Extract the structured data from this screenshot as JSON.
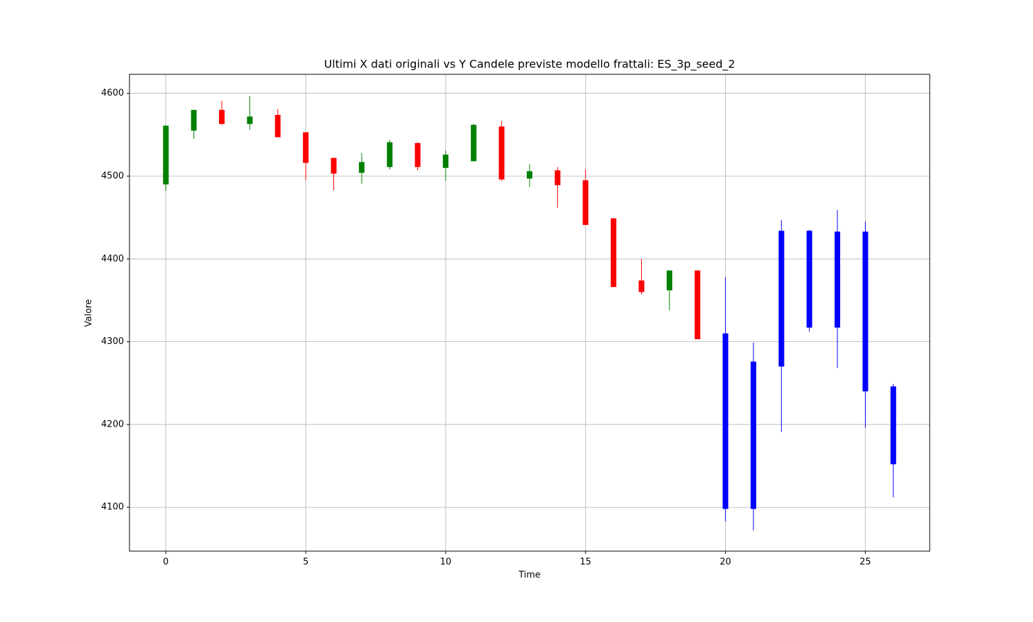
{
  "chart_data": {
    "type": "candlestick",
    "title": "Ultimi X dati originali vs Y Candele previste modello frattali: ES_3p_seed_2",
    "xlabel": "Time",
    "ylabel": "Valore",
    "x": [
      0,
      1,
      2,
      3,
      4,
      5,
      6,
      7,
      8,
      9,
      10,
      11,
      12,
      13,
      14,
      15,
      16,
      17,
      18,
      19,
      20,
      21,
      22,
      23,
      24,
      25,
      26
    ],
    "open": [
      4490,
      4555,
      4580,
      4563,
      4574,
      4553,
      4522,
      4504,
      4511,
      4540,
      4510,
      4518,
      4560,
      4497,
      4507,
      4495,
      4449,
      4374,
      4362,
      4386,
      4310,
      4276,
      4270,
      4434,
      4433,
      4433,
      4246
    ],
    "high": [
      4561,
      4580,
      4591,
      4597,
      4581,
      4553,
      4522,
      4528,
      4544,
      4541,
      4531,
      4563,
      4567,
      4515,
      4511,
      4508,
      4449,
      4400,
      4386,
      4386,
      4378,
      4299,
      4447,
      4435,
      4459,
      4445,
      4249
    ],
    "low": [
      4482,
      4545,
      4562,
      4556,
      4547,
      4495,
      4483,
      4491,
      4508,
      4507,
      4494,
      4518,
      4494,
      4487,
      4462,
      4441,
      4366,
      4357,
      4338,
      4303,
      4083,
      4072,
      4191,
      4312,
      4268,
      4196,
      4112
    ],
    "close": [
      4561,
      4580,
      4563,
      4572,
      4547,
      4516,
      4503,
      4517,
      4541,
      4511,
      4526,
      4562,
      4496,
      4506,
      4489,
      4441,
      4366,
      4360,
      4386,
      4303,
      4098,
      4098,
      4434,
      4317,
      4317,
      4240,
      4152
    ],
    "colors": [
      "green",
      "green",
      "red",
      "green",
      "red",
      "red",
      "red",
      "green",
      "green",
      "red",
      "green",
      "green",
      "red",
      "green",
      "red",
      "red",
      "red",
      "red",
      "green",
      "red",
      "blue",
      "blue",
      "blue",
      "blue",
      "blue",
      "blue",
      "blue"
    ],
    "xlim": [
      -1.3,
      27.3
    ],
    "ylim": [
      4047,
      4623
    ],
    "xticks": [
      0,
      5,
      10,
      15,
      20,
      25
    ],
    "yticks": [
      4100,
      4200,
      4300,
      4400,
      4500,
      4600
    ],
    "grid": true
  }
}
